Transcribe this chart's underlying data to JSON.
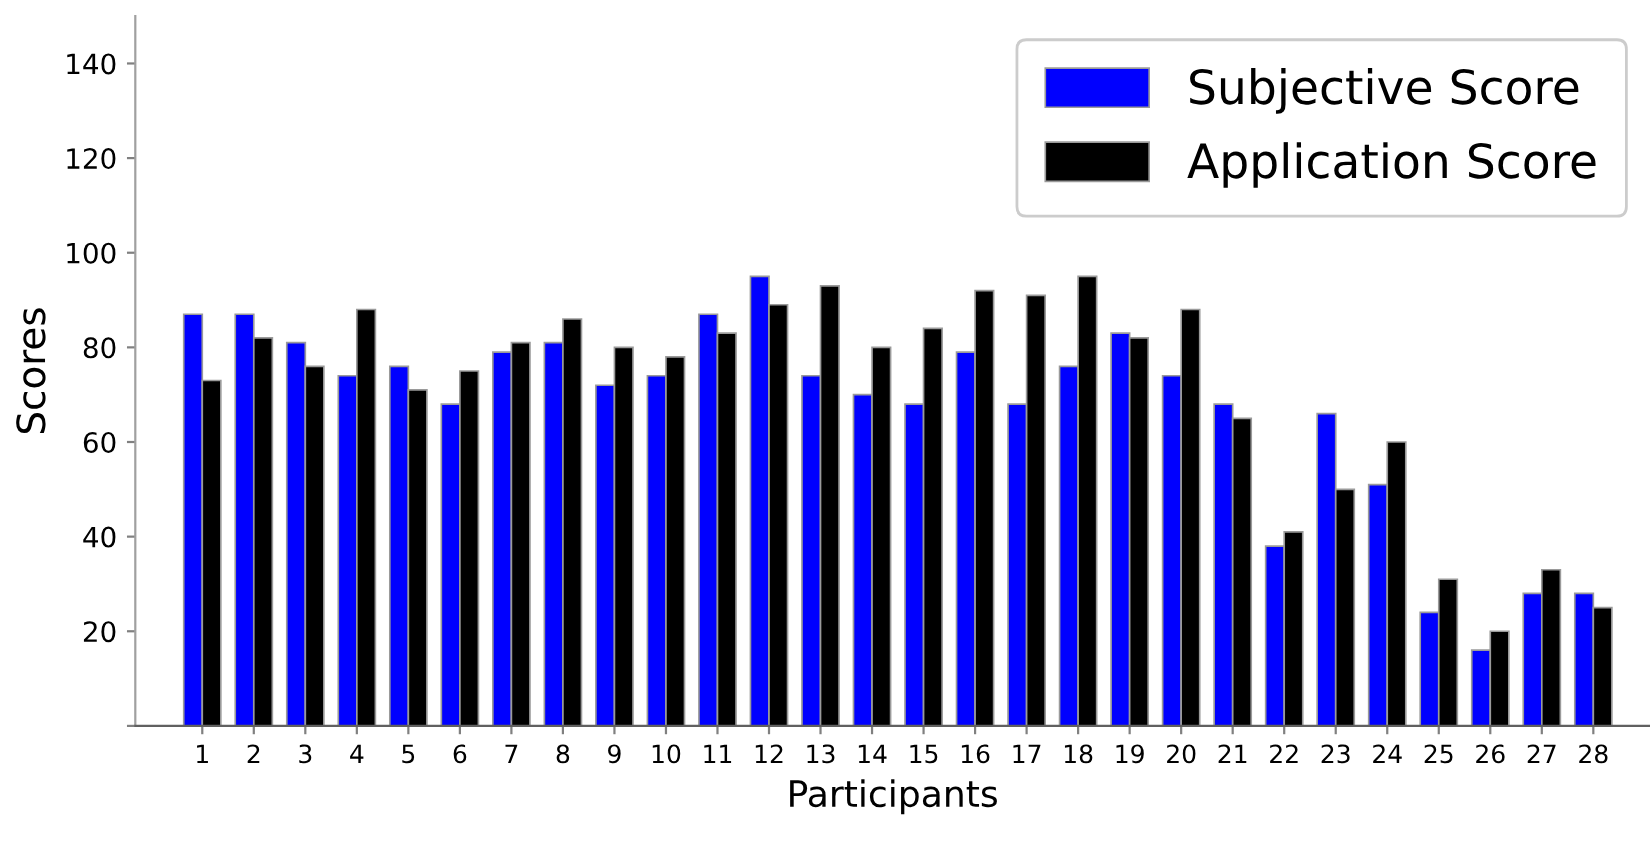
{
  "chart_data": {
    "type": "bar",
    "xlabel": "Participants",
    "ylabel": "Scores",
    "categories": [
      "1",
      "2",
      "3",
      "4",
      "5",
      "6",
      "7",
      "8",
      "9",
      "10",
      "11",
      "12",
      "13",
      "14",
      "15",
      "16",
      "17",
      "18",
      "19",
      "20",
      "21",
      "22",
      "23",
      "24",
      "25",
      "26",
      "27",
      "28"
    ],
    "series": [
      {
        "name": "Subjective Score",
        "color": "#0000ff",
        "values": [
          87,
          87,
          81,
          74,
          76,
          68,
          79,
          81,
          72,
          74,
          87,
          95,
          74,
          70,
          68,
          79,
          68,
          76,
          83,
          74,
          68,
          38,
          66,
          51,
          24,
          16,
          28,
          28
        ]
      },
      {
        "name": "Application Score",
        "color": "#000000",
        "values": [
          73,
          82,
          76,
          88,
          71,
          75,
          81,
          86,
          80,
          78,
          83,
          89,
          93,
          80,
          84,
          92,
          91,
          95,
          82,
          88,
          65,
          41,
          50,
          60,
          31,
          20,
          33,
          25
        ]
      }
    ],
    "ylim": [
      0,
      150
    ],
    "yticks": [
      {
        "value": 0,
        "label": null
      },
      20,
      40,
      60,
      80,
      100,
      120,
      140
    ],
    "grid": false,
    "legend": "top right"
  }
}
